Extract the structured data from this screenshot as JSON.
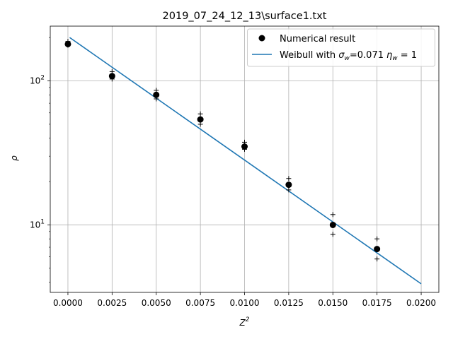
{
  "chart_data": {
    "type": "scatter",
    "title": "2019_07_24_12_13\\surface1.txt",
    "xlabel": "Z",
    "xlabel_superscript": "2",
    "ylabel": "ρ",
    "x_range": [
      -0.001,
      0.021
    ],
    "y_range": [
      3.4,
      240
    ],
    "y_scale": "log",
    "grid": true,
    "legend_position": "top-right",
    "x_ticks": [
      0.0,
      0.0025,
      0.005,
      0.0075,
      0.01,
      0.0125,
      0.015,
      0.0175,
      0.02
    ],
    "x_tick_labels": [
      "0.0000",
      "0.0025",
      "0.0050",
      "0.0075",
      "0.0100",
      "0.0125",
      "0.0150",
      "0.0175",
      "0.0200"
    ],
    "y_ticks": [
      10,
      100
    ],
    "y_tick_labels": [
      {
        "base": "10",
        "exp": "1"
      },
      {
        "base": "10",
        "exp": "2"
      }
    ],
    "y_minor_ticks": [
      4,
      5,
      6,
      7,
      8,
      9,
      20,
      30,
      40,
      50,
      60,
      70,
      80,
      90,
      200
    ],
    "series": [
      {
        "name": "Numerical result",
        "kind": "scatter",
        "color": "#000000",
        "points": [
          {
            "x": 0.0,
            "y": 180
          },
          {
            "x": 0.0025,
            "y": 108
          },
          {
            "x": 0.005,
            "y": 80
          },
          {
            "x": 0.0075,
            "y": 54
          },
          {
            "x": 0.01,
            "y": 35
          },
          {
            "x": 0.0125,
            "y": 19
          },
          {
            "x": 0.015,
            "y": 10
          },
          {
            "x": 0.0175,
            "y": 6.8
          }
        ]
      },
      {
        "name": "bounds",
        "kind": "plus",
        "color": "#000000",
        "points": [
          {
            "x": 0.0,
            "y": 177
          },
          {
            "x": 0.0,
            "y": 188
          },
          {
            "x": 0.0025,
            "y": 103
          },
          {
            "x": 0.0025,
            "y": 116
          },
          {
            "x": 0.005,
            "y": 75
          },
          {
            "x": 0.005,
            "y": 86
          },
          {
            "x": 0.0075,
            "y": 50
          },
          {
            "x": 0.0075,
            "y": 59
          },
          {
            "x": 0.01,
            "y": 33.5
          },
          {
            "x": 0.01,
            "y": 37.5
          },
          {
            "x": 0.0125,
            "y": 17.5
          },
          {
            "x": 0.0125,
            "y": 21
          },
          {
            "x": 0.015,
            "y": 8.6
          },
          {
            "x": 0.015,
            "y": 11.8
          },
          {
            "x": 0.0175,
            "y": 5.8
          },
          {
            "x": 0.0175,
            "y": 8.0
          }
        ]
      },
      {
        "name": "Weibull",
        "kind": "line",
        "color": "#1f77b4",
        "points": [
          {
            "x": 0.0001,
            "y": 200
          },
          {
            "x": 0.02,
            "y": 3.9
          }
        ]
      }
    ],
    "legend": [
      {
        "series": "Numerical result",
        "marker": "circle",
        "color": "#000000",
        "text": "Numerical result"
      },
      {
        "series": "Weibull",
        "marker": "line",
        "color": "#1f77b4",
        "text_prefix": "Weibull with ",
        "sigma_symbol": "σ",
        "sigma_sub": "w",
        "sigma_value": "=0.071",
        "eta_symbol": "η",
        "eta_sub": "w",
        "eta_value": " = 1"
      }
    ]
  }
}
